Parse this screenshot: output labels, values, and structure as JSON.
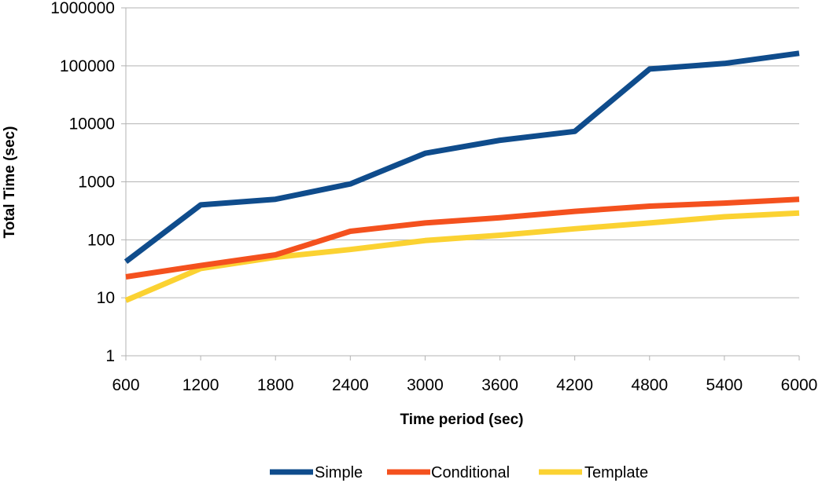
{
  "chart_data": {
    "type": "line",
    "title": "",
    "xlabel": "Time period (sec)",
    "ylabel": "Total Time (sec)",
    "y_scale": "log",
    "ylim": [
      1,
      1000000
    ],
    "y_ticks": [
      "1",
      "10",
      "100",
      "1000",
      "10000",
      "100000",
      "1000000"
    ],
    "x_categories": [
      "600",
      "1200",
      "1800",
      "2400",
      "3000",
      "3600",
      "4200",
      "4800",
      "5400",
      "6000"
    ],
    "grid": "horizontal",
    "legend_position": "bottom",
    "series": [
      {
        "name": "Simple",
        "color": "#0f4c8c",
        "values": [
          42,
          400,
          500,
          920,
          3100,
          5200,
          7400,
          88000,
          110000,
          165000
        ]
      },
      {
        "name": "Conditional",
        "color": "#f4511e",
        "values": [
          23,
          36,
          55,
          140,
          195,
          240,
          310,
          380,
          430,
          500
        ]
      },
      {
        "name": "Template",
        "color": "#fbd232",
        "values": [
          9,
          32,
          50,
          68,
          97,
          120,
          155,
          195,
          250,
          290
        ]
      }
    ]
  }
}
